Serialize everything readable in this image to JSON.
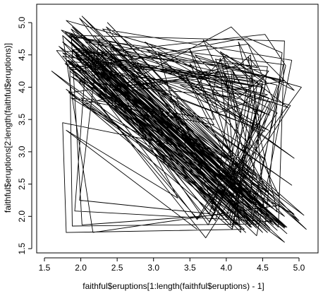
{
  "chart_data": {
    "type": "line",
    "title": "",
    "xlabel": "faithful$eruptions[1:length(faithful$eruptions) - 1]",
    "ylabel": "faithful$eruptions[2:length(faithful$eruptions)]",
    "xlim": [
      1.5,
      5.1
    ],
    "ylim": [
      1.5,
      5.15
    ],
    "xticks": [
      "1.5",
      "2.0",
      "2.5",
      "3.0",
      "3.5",
      "4.0",
      "4.5",
      "5.0"
    ],
    "yticks": [
      "1.5",
      "2.0",
      "2.5",
      "3.0",
      "3.5",
      "4.0",
      "4.5",
      "5.0"
    ],
    "grid": false,
    "line_color": "#000000",
    "points": [
      [
        3.6,
        1.8
      ],
      [
        1.8,
        3.333
      ],
      [
        3.333,
        2.283
      ],
      [
        2.283,
        4.533
      ],
      [
        4.533,
        2.883
      ],
      [
        2.883,
        4.7
      ],
      [
        4.7,
        3.6
      ],
      [
        3.6,
        1.95
      ],
      [
        1.95,
        4.35
      ],
      [
        4.35,
        1.833
      ],
      [
        1.833,
        3.917
      ],
      [
        3.917,
        4.2
      ],
      [
        4.2,
        1.75
      ],
      [
        1.75,
        4.7
      ],
      [
        4.7,
        2.167
      ],
      [
        2.167,
        1.75
      ],
      [
        1.75,
        4.8
      ],
      [
        4.8,
        1.6
      ],
      [
        1.6,
        4.25
      ],
      [
        4.25,
        1.8
      ],
      [
        1.8,
        1.75
      ],
      [
        1.75,
        3.45
      ],
      [
        3.45,
        3.067
      ],
      [
        3.067,
        4.533
      ],
      [
        4.533,
        3.6
      ],
      [
        3.6,
        1.967
      ],
      [
        1.967,
        4.083
      ],
      [
        4.083,
        3.85
      ],
      [
        3.85,
        4.433
      ],
      [
        4.433,
        4.3
      ],
      [
        4.3,
        4.467
      ],
      [
        4.467,
        3.367
      ],
      [
        3.367,
        4.033
      ],
      [
        4.033,
        3.833
      ],
      [
        3.833,
        2.017
      ],
      [
        2.017,
        1.867
      ],
      [
        1.867,
        4.833
      ],
      [
        4.833,
        1.833
      ],
      [
        1.833,
        4.783
      ],
      [
        4.783,
        4.35
      ],
      [
        4.35,
        1.883
      ],
      [
        1.883,
        4.567
      ],
      [
        4.567,
        1.75
      ],
      [
        1.75,
        4.533
      ],
      [
        4.533,
        3.317
      ],
      [
        3.317,
        3.833
      ],
      [
        3.833,
        2.1
      ],
      [
        2.1,
        4.633
      ],
      [
        4.633,
        2.0
      ],
      [
        2.0,
        4.8
      ],
      [
        4.8,
        4.716
      ],
      [
        4.716,
        1.833
      ],
      [
        1.833,
        4.833
      ],
      [
        4.833,
        1.733
      ],
      [
        1.733,
        4.883
      ],
      [
        4.883,
        3.717
      ],
      [
        3.717,
        1.667
      ],
      [
        1.667,
        4.567
      ],
      [
        4.567,
        4.317
      ],
      [
        4.317,
        2.233
      ],
      [
        2.233,
        4.5
      ],
      [
        4.5,
        1.75
      ],
      [
        1.75,
        4.8
      ],
      [
        4.8,
        1.817
      ],
      [
        1.817,
        4.4
      ],
      [
        4.4,
        4.167
      ],
      [
        4.167,
        4.7
      ],
      [
        4.7,
        2.067
      ],
      [
        2.067,
        4.7
      ],
      [
        4.7,
        4.033
      ],
      [
        4.033,
        1.967
      ],
      [
        1.967,
        4.5
      ],
      [
        4.5,
        4.0
      ],
      [
        4.0,
        1.983
      ],
      [
        1.983,
        5.067
      ],
      [
        5.067,
        2.017
      ],
      [
        2.017,
        4.567
      ],
      [
        4.567,
        3.883
      ],
      [
        3.883,
        3.6
      ],
      [
        3.6,
        4.133
      ],
      [
        4.133,
        4.333
      ],
      [
        4.333,
        4.1
      ],
      [
        4.1,
        2.633
      ],
      [
        2.633,
        4.067
      ],
      [
        4.067,
        4.933
      ],
      [
        4.933,
        3.95
      ],
      [
        3.95,
        4.517
      ],
      [
        4.517,
        2.167
      ],
      [
        2.167,
        4.0
      ],
      [
        4.0,
        2.2
      ],
      [
        2.2,
        4.333
      ],
      [
        4.333,
        1.867
      ],
      [
        1.867,
        4.817
      ],
      [
        4.817,
        1.833
      ],
      [
        1.833,
        4.3
      ],
      [
        4.3,
        4.667
      ],
      [
        4.667,
        3.75
      ],
      [
        3.75,
        1.867
      ],
      [
        1.867,
        4.9
      ],
      [
        4.9,
        2.483
      ],
      [
        2.483,
        4.367
      ],
      [
        4.367,
        2.1
      ],
      [
        2.1,
        4.5
      ],
      [
        4.5,
        4.05
      ],
      [
        4.05,
        1.867
      ],
      [
        1.867,
        4.7
      ],
      [
        4.7,
        1.783
      ],
      [
        1.783,
        4.85
      ],
      [
        4.85,
        3.683
      ],
      [
        3.683,
        4.733
      ],
      [
        4.733,
        2.3
      ],
      [
        2.3,
        4.9
      ],
      [
        4.9,
        4.417
      ],
      [
        4.417,
        1.7
      ],
      [
        1.7,
        4.633
      ],
      [
        4.633,
        2.317
      ],
      [
        2.317,
        4.6
      ],
      [
        4.6,
        1.817
      ],
      [
        1.817,
        4.417
      ],
      [
        4.417,
        2.617
      ],
      [
        2.617,
        4.067
      ],
      [
        4.067,
        4.25
      ],
      [
        4.25,
        1.967
      ],
      [
        1.967,
        4.6
      ],
      [
        4.6,
        3.767
      ],
      [
        3.767,
        1.917
      ],
      [
        1.917,
        4.5
      ],
      [
        4.5,
        2.267
      ],
      [
        2.267,
        4.65
      ],
      [
        4.65,
        1.867
      ],
      [
        1.867,
        4.167
      ],
      [
        4.167,
        2.8
      ],
      [
        2.8,
        4.333
      ],
      [
        4.333,
        1.833
      ],
      [
        1.833,
        4.383
      ],
      [
        4.383,
        1.883
      ],
      [
        1.883,
        4.933
      ],
      [
        4.933,
        2.033
      ],
      [
        2.033,
        3.733
      ],
      [
        3.733,
        4.233
      ],
      [
        4.233,
        2.233
      ],
      [
        2.233,
        4.533
      ],
      [
        4.533,
        4.817
      ],
      [
        4.817,
        4.333
      ],
      [
        4.333,
        1.983
      ],
      [
        1.983,
        4.633
      ],
      [
        4.633,
        2.017
      ],
      [
        2.017,
        5.1
      ],
      [
        5.1,
        1.8
      ],
      [
        1.8,
        5.033
      ],
      [
        5.033,
        4.0
      ],
      [
        4.0,
        2.4
      ],
      [
        2.4,
        4.6
      ],
      [
        4.6,
        3.567
      ],
      [
        3.567,
        4.0
      ],
      [
        4.0,
        4.5
      ],
      [
        4.5,
        4.083
      ],
      [
        4.083,
        1.8
      ],
      [
        1.8,
        3.967
      ],
      [
        3.967,
        2.2
      ],
      [
        2.2,
        4.15
      ],
      [
        4.15,
        2.0
      ],
      [
        2.0,
        3.833
      ],
      [
        3.833,
        3.5
      ],
      [
        3.5,
        4.583
      ],
      [
        4.583,
        2.367
      ],
      [
        2.367,
        5.0
      ],
      [
        5.0,
        1.933
      ],
      [
        1.933,
        4.617
      ],
      [
        4.617,
        1.917
      ],
      [
        1.917,
        2.083
      ],
      [
        2.083,
        4.583
      ],
      [
        4.583,
        3.333
      ],
      [
        3.333,
        4.167
      ],
      [
        4.167,
        4.333
      ],
      [
        4.333,
        4.5
      ],
      [
        4.5,
        2.417
      ],
      [
        2.417,
        4.0
      ],
      [
        4.0,
        4.167
      ],
      [
        4.167,
        1.883
      ],
      [
        1.883,
        4.583
      ],
      [
        4.583,
        4.25
      ],
      [
        4.25,
        3.767
      ],
      [
        3.767,
        2.033
      ],
      [
        2.033,
        4.433
      ],
      [
        4.433,
        4.083
      ],
      [
        4.083,
        1.833
      ],
      [
        1.833,
        4.417
      ],
      [
        4.417,
        2.183
      ],
      [
        2.183,
        4.8
      ],
      [
        4.8,
        1.833
      ],
      [
        1.833,
        4.8
      ],
      [
        4.8,
        4.1
      ],
      [
        4.1,
        3.966
      ],
      [
        3.966,
        4.233
      ],
      [
        4.233,
        3.5
      ],
      [
        3.5,
        4.366
      ],
      [
        4.366,
        2.25
      ],
      [
        2.25,
        4.667
      ],
      [
        4.667,
        2.1
      ],
      [
        2.1,
        4.35
      ],
      [
        4.35,
        4.133
      ],
      [
        4.133,
        1.867
      ],
      [
        1.867,
        4.6
      ],
      [
        4.6,
        1.783
      ],
      [
        1.783,
        4.367
      ],
      [
        4.367,
        3.85
      ],
      [
        3.85,
        1.933
      ],
      [
        1.933,
        4.5
      ],
      [
        4.5,
        2.383
      ],
      [
        2.383,
        4.7
      ],
      [
        4.7,
        1.867
      ],
      [
        1.867,
        3.833
      ],
      [
        3.833,
        3.417
      ],
      [
        3.417,
        4.233
      ],
      [
        4.233,
        2.4
      ],
      [
        2.4,
        4.8
      ],
      [
        4.8,
        2.0
      ],
      [
        2.0,
        4.15
      ],
      [
        4.15,
        1.867
      ],
      [
        1.867,
        4.267
      ],
      [
        4.267,
        1.75
      ],
      [
        1.75,
        4.483
      ],
      [
        4.483,
        4.0
      ],
      [
        4.0,
        4.117
      ],
      [
        4.117,
        4.083
      ],
      [
        4.083,
        4.267
      ],
      [
        4.267,
        3.917
      ],
      [
        3.917,
        4.55
      ],
      [
        4.55,
        4.083
      ],
      [
        4.083,
        2.417
      ],
      [
        2.417,
        4.183
      ],
      [
        4.183,
        2.217
      ],
      [
        2.217,
        4.45
      ],
      [
        4.45,
        1.883
      ],
      [
        1.883,
        1.85
      ],
      [
        1.85,
        4.283
      ],
      [
        4.283,
        3.95
      ],
      [
        3.95,
        2.333
      ],
      [
        2.333,
        4.15
      ],
      [
        4.15,
        2.35
      ],
      [
        2.35,
        4.933
      ],
      [
        4.933,
        2.9
      ],
      [
        2.9,
        4.583
      ],
      [
        4.583,
        3.833
      ],
      [
        3.833,
        2.083
      ],
      [
        2.083,
        4.367
      ],
      [
        4.367,
        2.133
      ],
      [
        2.133,
        4.35
      ],
      [
        4.35,
        2.2
      ],
      [
        2.2,
        4.45
      ],
      [
        4.45,
        3.567
      ],
      [
        3.567,
        4.5
      ],
      [
        4.5,
        4.15
      ],
      [
        4.15,
        3.817
      ],
      [
        3.817,
        3.917
      ],
      [
        3.917,
        4.45
      ],
      [
        4.45,
        2.0
      ],
      [
        2.0,
        4.283
      ],
      [
        4.283,
        4.767
      ],
      [
        4.767,
        4.533
      ],
      [
        4.533,
        1.85
      ],
      [
        1.85,
        4.25
      ],
      [
        4.25,
        1.983
      ],
      [
        1.983,
        2.25
      ],
      [
        2.25,
        4.75
      ],
      [
        4.75,
        4.117
      ],
      [
        4.117,
        2.15
      ],
      [
        2.15,
        4.417
      ],
      [
        4.417,
        1.817
      ],
      [
        1.817,
        4.467
      ]
    ]
  }
}
